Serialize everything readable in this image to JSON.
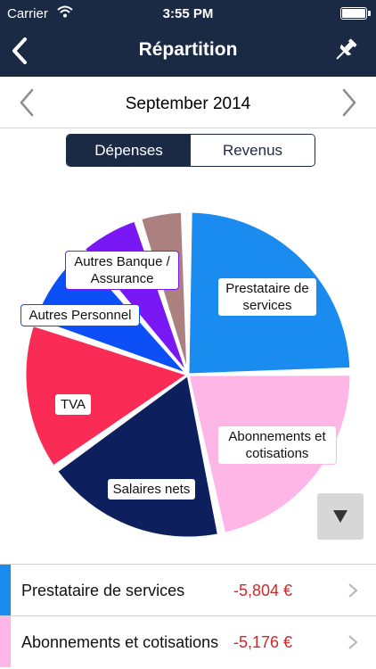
{
  "status_bar": {
    "carrier": "Carrier",
    "time": "3:55 PM"
  },
  "nav": {
    "title": "Répartition"
  },
  "month": {
    "label": "September 2014"
  },
  "segments": [
    {
      "label": "Dépenses",
      "active": true
    },
    {
      "label": "Revenus",
      "active": false
    }
  ],
  "chart_data": {
    "type": "pie",
    "slices": [
      {
        "label": "Prestataire de services",
        "display": "Prestataire de\nservices",
        "share": 0.247,
        "color": "#1a8cf0"
      },
      {
        "label": "Abonnements et cotisations",
        "display": "Abonnements et\ncotisations",
        "share": 0.22,
        "color": "#fdb6e6"
      },
      {
        "label": "Salaires nets",
        "display": "Salaires nets",
        "share": 0.185,
        "color": "#0e1f5e"
      },
      {
        "label": "TVA",
        "display": "TVA",
        "share": 0.15,
        "color": "#fa2b55"
      },
      {
        "label": "Autres Personnel",
        "display": "Autres Personnel",
        "share": 0.085,
        "color": "#0c4ff6"
      },
      {
        "label": "Autres Banque / Assurance",
        "display": "Autres Banque /\nAssurance",
        "share": 0.063,
        "color": "#7a17f5"
      },
      {
        "label": "",
        "display": "",
        "share": 0.047,
        "color": "#ad8080"
      },
      {
        "label": "",
        "display": "",
        "share": 0.003,
        "color": "#e0d8d8"
      }
    ]
  },
  "list": [
    {
      "name": "Prestataire de services",
      "amount": "-5,804 €",
      "color": "#1a8cf0"
    },
    {
      "name": "Abonnements et cotisations",
      "amount": "-5,176 €",
      "color": "#fdb6e6"
    }
  ]
}
